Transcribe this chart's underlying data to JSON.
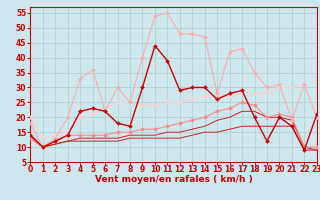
{
  "background_color": "#cce8ee",
  "grid_color": "#aacccc",
  "xlabel": "Vent moyen/en rafales ( km/h )",
  "xlim": [
    0,
    23
  ],
  "ylim": [
    5,
    57
  ],
  "yticks": [
    5,
    10,
    15,
    20,
    25,
    30,
    35,
    40,
    45,
    50,
    55
  ],
  "xticks": [
    0,
    1,
    2,
    3,
    4,
    5,
    6,
    7,
    8,
    9,
    10,
    11,
    12,
    13,
    14,
    15,
    16,
    17,
    18,
    19,
    20,
    21,
    22,
    23
  ],
  "lines": [
    {
      "x": [
        0,
        1,
        2,
        3,
        4,
        5,
        6,
        7,
        8,
        9,
        10,
        11,
        12,
        13,
        14,
        15,
        16,
        17,
        18,
        19,
        20,
        21,
        22,
        23
      ],
      "y": [
        14,
        10,
        12,
        14,
        22,
        23,
        22,
        18,
        17,
        30,
        44,
        39,
        29,
        30,
        30,
        26,
        28,
        29,
        20,
        12,
        20,
        17,
        9,
        21
      ],
      "color": "#cc0000",
      "lw": 1.0,
      "marker": "D",
      "ms": 2.0,
      "zorder": 5
    },
    {
      "x": [
        0,
        1,
        2,
        3,
        4,
        5,
        6,
        7,
        8,
        9,
        10,
        11,
        12,
        13,
        14,
        15,
        16,
        17,
        18,
        19,
        20,
        21,
        22,
        23
      ],
      "y": [
        18,
        10,
        13,
        20,
        33,
        36,
        22,
        30,
        25,
        40,
        54,
        55,
        48,
        48,
        47,
        28,
        42,
        43,
        35,
        30,
        31,
        19,
        31,
        20
      ],
      "color": "#ffaaaa",
      "lw": 0.8,
      "marker": "D",
      "ms": 2.0,
      "zorder": 4
    },
    {
      "x": [
        0,
        1,
        2,
        3,
        4,
        5,
        6,
        7,
        8,
        9,
        10,
        11,
        12,
        13,
        14,
        15,
        16,
        17,
        18,
        19,
        20,
        21,
        22,
        23
      ],
      "y": [
        13,
        10,
        12,
        14,
        14,
        14,
        14,
        15,
        15,
        16,
        16,
        17,
        18,
        19,
        20,
        22,
        23,
        25,
        24,
        20,
        21,
        20,
        10,
        10
      ],
      "color": "#ff8888",
      "lw": 0.8,
      "marker": "D",
      "ms": 2.0,
      "zorder": 3
    },
    {
      "x": [
        0,
        1,
        2,
        3,
        4,
        5,
        6,
        7,
        8,
        9,
        10,
        11,
        12,
        13,
        14,
        15,
        16,
        17,
        18,
        19,
        20,
        21,
        22,
        23
      ],
      "y": [
        14,
        10,
        11,
        12,
        13,
        13,
        13,
        13,
        14,
        14,
        14,
        15,
        15,
        16,
        17,
        19,
        20,
        22,
        22,
        20,
        20,
        19,
        10,
        9
      ],
      "color": "#cc2222",
      "lw": 0.7,
      "marker": null,
      "ms": 0,
      "zorder": 2
    },
    {
      "x": [
        0,
        1,
        2,
        3,
        4,
        5,
        6,
        7,
        8,
        9,
        10,
        11,
        12,
        13,
        14,
        15,
        16,
        17,
        18,
        19,
        20,
        21,
        22,
        23
      ],
      "y": [
        13,
        10,
        11,
        12,
        12,
        12,
        12,
        12,
        13,
        13,
        13,
        13,
        13,
        14,
        15,
        15,
        16,
        17,
        17,
        17,
        17,
        17,
        9,
        9
      ],
      "color": "#cc2222",
      "lw": 0.7,
      "marker": null,
      "ms": 0,
      "zorder": 2
    },
    {
      "x": [
        0,
        1,
        2,
        3,
        4,
        5,
        6,
        7,
        8,
        9,
        10,
        11,
        12,
        13,
        14,
        15,
        16,
        17,
        18,
        19,
        20,
        21,
        22,
        23
      ],
      "y": [
        20,
        13,
        14,
        15,
        20,
        21,
        23,
        25,
        25,
        24,
        24,
        25,
        25,
        26,
        27,
        27,
        27,
        28,
        28,
        28,
        30,
        30,
        31,
        20
      ],
      "color": "#ffcccc",
      "lw": 0.8,
      "marker": "D",
      "ms": 2.0,
      "zorder": 3
    }
  ],
  "label_fontsize": 6.5,
  "tick_fontsize": 5.5,
  "label_color": "#cc0000",
  "tick_color": "#cc0000"
}
